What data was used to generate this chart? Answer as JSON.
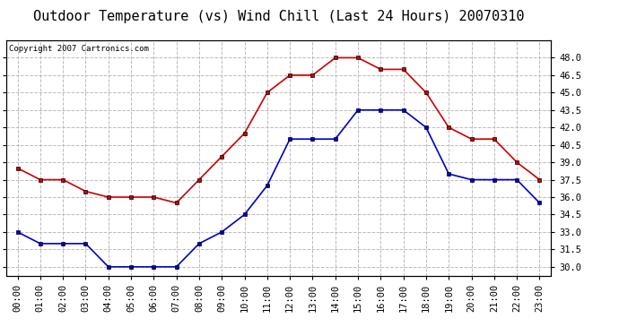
{
  "title": "Outdoor Temperature (vs) Wind Chill (Last 24 Hours) 20070310",
  "copyright": "Copyright 2007 Cartronics.com",
  "hours": [
    "00:00",
    "01:00",
    "02:00",
    "03:00",
    "04:00",
    "05:00",
    "06:00",
    "07:00",
    "08:00",
    "09:00",
    "10:00",
    "11:00",
    "12:00",
    "13:00",
    "14:00",
    "15:00",
    "16:00",
    "17:00",
    "18:00",
    "19:00",
    "20:00",
    "21:00",
    "22:00",
    "23:00"
  ],
  "temp": [
    38.5,
    37.5,
    37.5,
    36.5,
    36.0,
    36.0,
    36.0,
    35.5,
    37.5,
    39.5,
    41.5,
    45.0,
    46.5,
    46.5,
    48.0,
    48.0,
    47.0,
    47.0,
    45.0,
    42.0,
    41.0,
    41.0,
    39.0,
    37.5
  ],
  "windchill": [
    33.0,
    32.0,
    32.0,
    32.0,
    30.0,
    30.0,
    30.0,
    30.0,
    32.0,
    33.0,
    34.5,
    37.0,
    41.0,
    41.0,
    41.0,
    43.5,
    43.5,
    43.5,
    42.0,
    38.0,
    37.5,
    37.5,
    37.5,
    35.5
  ],
  "temp_color": "#cc0000",
  "windchill_color": "#0000cc",
  "marker": "s",
  "ylim_min": 29.25,
  "ylim_max": 49.5,
  "yticks": [
    30.0,
    31.5,
    33.0,
    34.5,
    36.0,
    37.5,
    39.0,
    40.5,
    42.0,
    43.5,
    45.0,
    46.5,
    48.0
  ],
  "bg_color": "#ffffff",
  "grid_color": "#bbbbbb",
  "title_fontsize": 11,
  "copyright_fontsize": 6.5,
  "tick_fontsize": 7.5
}
